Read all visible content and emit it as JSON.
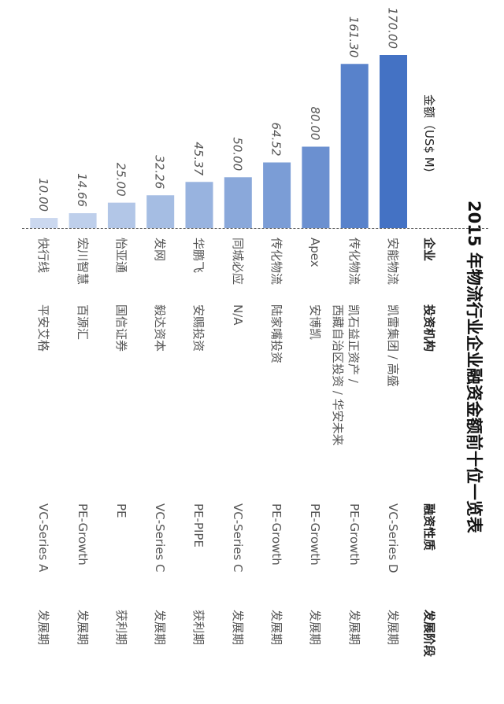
{
  "title": "2015 年物流行业企业融资金额前十位一览表",
  "headers": {
    "amount": "金额（US$ M)",
    "company": "企业",
    "investor": "投资机构",
    "type": "融资性质",
    "stage": "发展阶段"
  },
  "chart_data": {
    "type": "bar",
    "orientation": "horizontal",
    "title": "2015 年物流行业企业融资金额前十位一览表",
    "categories": [
      "安能物流",
      "传化物流",
      "Apex",
      "传化物流",
      "同城必应",
      "华鹏飞",
      "发网",
      "怡亚通",
      "宏川智慧",
      "快行线"
    ],
    "values": [
      170.0,
      161.3,
      80.0,
      64.52,
      50.0,
      45.37,
      32.26,
      25.0,
      14.66,
      10.0
    ],
    "value_labels": [
      "170.00",
      "161.30",
      "80.00",
      "64.52",
      "50.00",
      "45.37",
      "32.26",
      "25.00",
      "14.66",
      "10.00"
    ],
    "xlabel": "金额（US$ M)",
    "xlim": [
      0,
      170
    ],
    "grid": false,
    "colors": [
      "#4472c4",
      "#5882cb",
      "#6b90d0",
      "#7b9dd6",
      "#8aa8da",
      "#98b3df",
      "#a5bde3",
      "#b2c6e7",
      "#becfeb",
      "#cbd8ef"
    ]
  },
  "rows": [
    {
      "company": "安能物流",
      "investor": "凯雷集团 / 高盛",
      "type": "VC-Series D",
      "stage": "发展期"
    },
    {
      "company": "传化物流",
      "investor_lines": [
        "凯石益正资产 /",
        "西藏自治区投资 / 华安未来"
      ],
      "type": "PE-Growth",
      "stage": "发展期"
    },
    {
      "company": "Apex",
      "investor": "安博凯",
      "type": "PE-Growth",
      "stage": "发展期"
    },
    {
      "company": "传化物流",
      "investor": "陆家嘴投资",
      "type": "PE-Growth",
      "stage": "发展期"
    },
    {
      "company": "同城必应",
      "investor": "N/A",
      "type": "VC-Series C",
      "stage": "发展期"
    },
    {
      "company": "华鹏飞",
      "investor": "安赐投资",
      "type": "PE-PIPE",
      "stage": "获利期"
    },
    {
      "company": "发网",
      "investor": "毅达资本",
      "type": "VC-Series C",
      "stage": "发展期"
    },
    {
      "company": "怡亚通",
      "investor": "国信证券",
      "type": "PE",
      "stage": "获利期"
    },
    {
      "company": "宏川智慧",
      "investor": "百源汇",
      "type": "PE-Growth",
      "stage": "发展期"
    },
    {
      "company": "快行线",
      "investor": "平安艾格",
      "type": "VC-Series A",
      "stage": "发展期"
    }
  ]
}
